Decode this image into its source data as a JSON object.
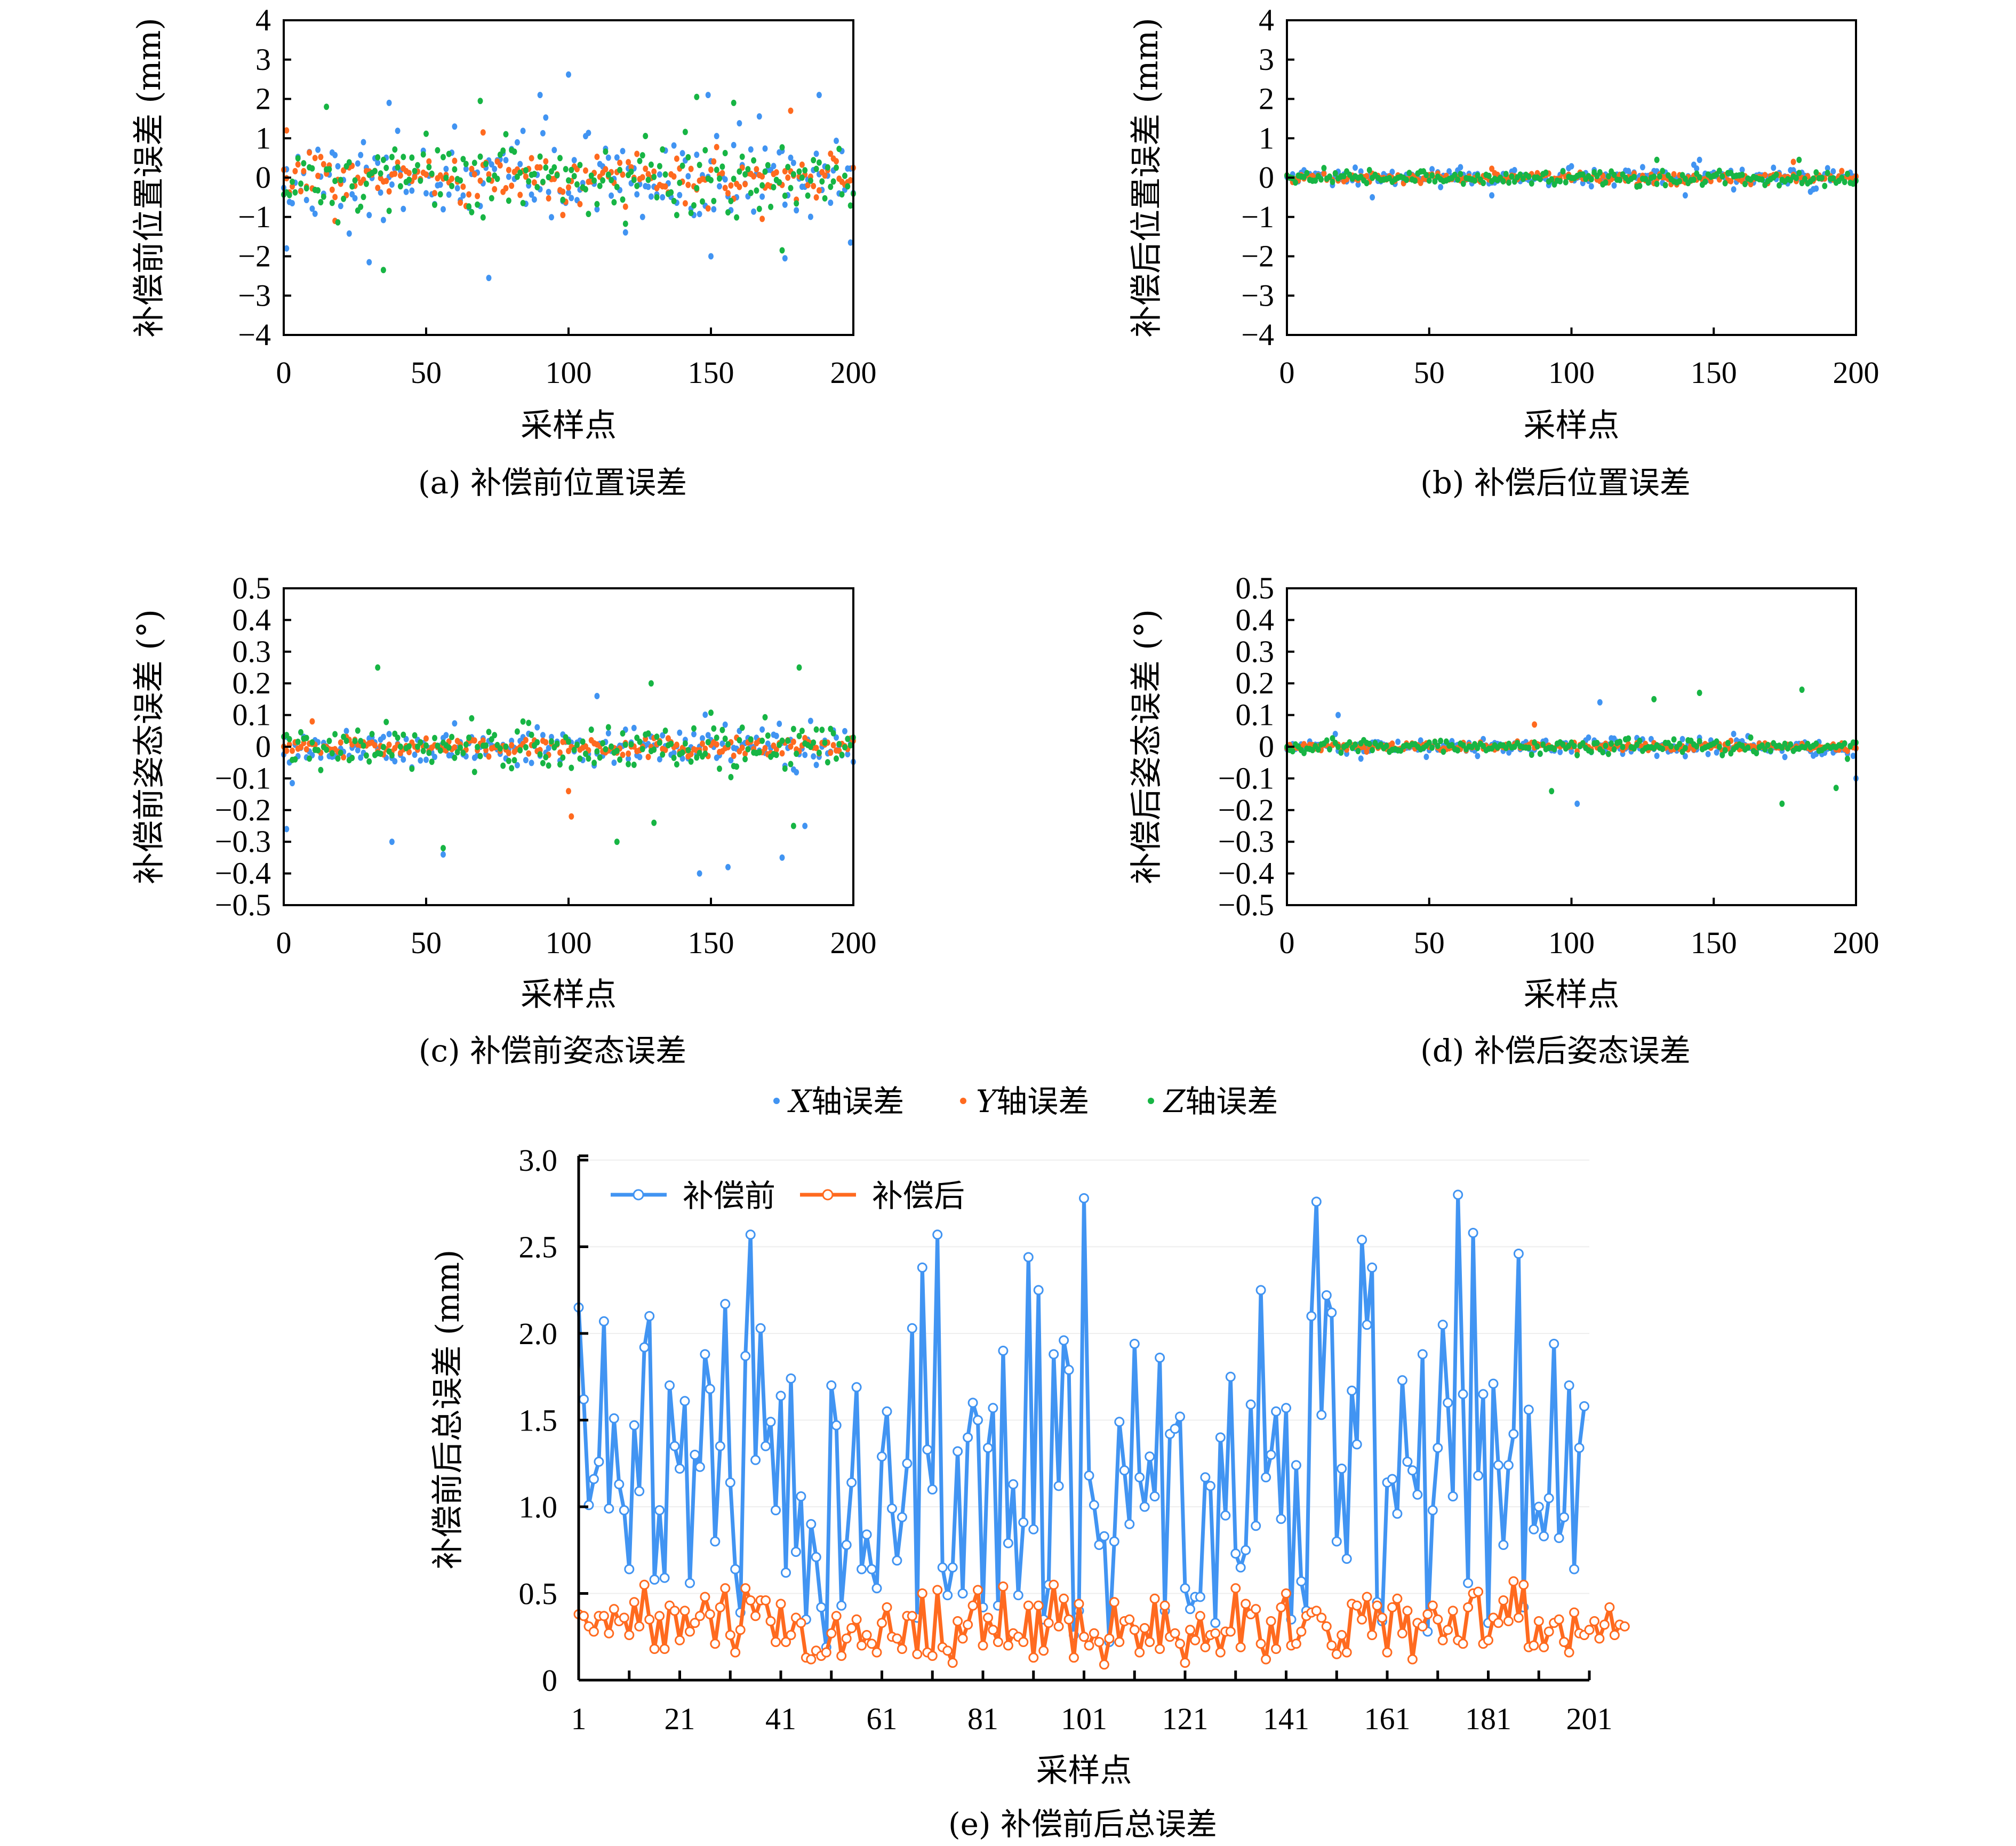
{
  "colors": {
    "x": "#4194f2",
    "y": "#ff6a1f",
    "z": "#17b544",
    "before": "#4194f2",
    "after": "#ff6a1f"
  },
  "shared_legend": [
    {
      "label": "X轴误差",
      "axis": "X",
      "suffix": "轴误差",
      "color": "#4194f2"
    },
    {
      "label": "Y轴误差",
      "axis": "Y",
      "suffix": "轴误差",
      "color": "#ff6a1f"
    },
    {
      "label": "Z轴误差",
      "axis": "Z",
      "suffix": "轴误差",
      "color": "#17b544"
    }
  ],
  "chart_data": [
    {
      "id": "a",
      "type": "scatter",
      "caption": "(a) 补偿前位置误差",
      "xlabel": "采样点",
      "ylabel": "补偿前位置误差 (mm)",
      "xlim": [
        0,
        200
      ],
      "ylim": [
        -4,
        4
      ],
      "xticks": [
        "0",
        "50",
        "100",
        "150",
        "200"
      ],
      "yticks": [
        "−4",
        "−3",
        "−2",
        "−1",
        "0",
        "1",
        "2",
        "3",
        "4"
      ],
      "series": [
        {
          "name": "X轴误差",
          "spread": 0.95,
          "outliers": [
            [
              1,
              -1.8
            ],
            [
              30,
              -2.15
            ],
            [
              37,
              1.9
            ],
            [
              72,
              -2.55
            ],
            [
              90,
              2.1
            ],
            [
              100,
              2.62
            ],
            [
              150,
              -2.0
            ],
            [
              149,
              2.1
            ],
            [
              176,
              -2.05
            ],
            [
              188,
              2.1
            ],
            [
              199,
              -1.65
            ]
          ]
        },
        {
          "name": "Y轴误差",
          "spread": 0.5,
          "outliers": [
            [
              1,
              1.2
            ],
            [
              18,
              -1.1
            ],
            [
              70,
              1.15
            ],
            [
              98,
              -0.95
            ],
            [
              178,
              1.7
            ],
            [
              168,
              -1.05
            ]
          ]
        },
        {
          "name": "Z轴误差",
          "spread": 0.8,
          "outliers": [
            [
              15,
              1.8
            ],
            [
              35,
              -2.35
            ],
            [
              69,
              1.95
            ],
            [
              145,
              2.05
            ],
            [
              158,
              1.9
            ],
            [
              175,
              -1.85
            ]
          ]
        }
      ]
    },
    {
      "id": "b",
      "type": "scatter",
      "caption": "(b) 补偿后位置误差",
      "xlabel": "采样点",
      "ylabel": "补偿后位置误差 (mm)",
      "xlim": [
        0,
        200
      ],
      "ylim": [
        -4,
        4
      ],
      "xticks": [
        "0",
        "50",
        "100",
        "150",
        "200"
      ],
      "yticks": [
        "−4",
        "−3",
        "−2",
        "−1",
        "0",
        "1",
        "2",
        "3",
        "4"
      ],
      "series": [
        {
          "name": "X轴误差",
          "spread": 0.2,
          "outliers": [
            [
              30,
              -0.5
            ],
            [
              72,
              -0.45
            ],
            [
              140,
              -0.45
            ],
            [
              145,
              0.45
            ]
          ]
        },
        {
          "name": "Y轴误差",
          "spread": 0.12,
          "outliers": [
            [
              178,
              0.4
            ]
          ]
        },
        {
          "name": "Z轴误差",
          "spread": 0.17,
          "outliers": [
            [
              130,
              0.45
            ],
            [
              180,
              0.45
            ]
          ]
        }
      ]
    },
    {
      "id": "c",
      "type": "scatter",
      "caption": "(c) 补偿前姿态误差",
      "xlabel": "采样点",
      "ylabel": "补偿前姿态误差 (°)",
      "xlim": [
        0,
        200
      ],
      "ylim": [
        -0.5,
        0.5
      ],
      "xticks": [
        "0",
        "50",
        "100",
        "150",
        "200"
      ],
      "yticks": [
        "−0.5",
        "−0.4",
        "−0.3",
        "−0.2",
        "−0.1",
        "0",
        "0.1",
        "0.2",
        "0.3",
        "0.4",
        "0.5"
      ],
      "series": [
        {
          "name": "X轴误差",
          "spread": 0.06,
          "outliers": [
            [
              1,
              -0.26
            ],
            [
              38,
              -0.3
            ],
            [
              56,
              -0.34
            ],
            [
              110,
              0.16
            ],
            [
              146,
              -0.4
            ],
            [
              156,
              -0.38
            ],
            [
              175,
              -0.35
            ],
            [
              183,
              -0.25
            ]
          ]
        },
        {
          "name": "Y轴误差",
          "spread": 0.025,
          "outliers": [
            [
              100,
              -0.14
            ],
            [
              101,
              -0.22
            ],
            [
              10,
              0.08
            ]
          ]
        },
        {
          "name": "Z轴误差",
          "spread": 0.075,
          "outliers": [
            [
              33,
              0.25
            ],
            [
              56,
              -0.32
            ],
            [
              117,
              -0.3
            ],
            [
              129,
              0.2
            ],
            [
              130,
              -0.24
            ],
            [
              181,
              0.25
            ],
            [
              179,
              -0.25
            ]
          ]
        }
      ]
    },
    {
      "id": "d",
      "type": "scatter",
      "caption": "(d) 补偿后姿态误差",
      "xlabel": "采样点",
      "ylabel": "补偿后姿态误差 (°)",
      "xlim": [
        0,
        200
      ],
      "ylim": [
        -0.5,
        0.5
      ],
      "xticks": [
        "0",
        "50",
        "100",
        "150",
        "200"
      ],
      "yticks": [
        "−0.5",
        "−0.4",
        "−0.3",
        "−0.2",
        "−0.1",
        "0",
        "0.1",
        "0.2",
        "0.3",
        "0.4",
        "0.5"
      ],
      "series": [
        {
          "name": "X轴误差",
          "spread": 0.025,
          "outliers": [
            [
              18,
              0.1
            ],
            [
              102,
              -0.18
            ],
            [
              110,
              0.14
            ],
            [
              200,
              -0.1
            ]
          ]
        },
        {
          "name": "Y轴误差",
          "spread": 0.012,
          "outliers": [
            [
              87,
              0.07
            ]
          ]
        },
        {
          "name": "Z轴误差",
          "spread": 0.02,
          "outliers": [
            [
              93,
              -0.14
            ],
            [
              129,
              0.15
            ],
            [
              145,
              0.17
            ],
            [
              181,
              0.18
            ],
            [
              174,
              -0.18
            ],
            [
              193,
              -0.13
            ]
          ]
        }
      ]
    },
    {
      "id": "e",
      "type": "line",
      "caption": "(e) 补偿前后总误差",
      "xlabel": "采样点",
      "ylabel": "补偿前后总误差 (mm)",
      "xlim": [
        1,
        201
      ],
      "ylim": [
        0,
        3.0
      ],
      "xticks": [
        "1",
        "21",
        "41",
        "61",
        "81",
        "101",
        "121",
        "141",
        "161",
        "181",
        "201"
      ],
      "yticks": [
        "0",
        "0.5",
        "1.0",
        "1.5",
        "2.0",
        "2.5",
        "3.0"
      ],
      "legend": [
        "补偿前",
        "补偿后"
      ],
      "series": [
        {
          "name": "补偿前",
          "values": [
            2.15,
            1.62,
            1.01,
            1.16,
            1.26,
            2.07,
            0.99,
            1.51,
            1.13,
            0.98,
            0.64,
            1.47,
            1.09,
            1.92,
            2.1,
            0.58,
            0.98,
            0.59,
            1.7,
            1.35,
            1.22,
            1.61,
            0.56,
            1.3,
            1.23,
            1.88,
            1.68,
            0.8,
            1.35,
            2.17,
            1.14,
            0.64,
            0.39,
            1.87,
            2.57,
            1.27,
            2.03,
            1.35,
            1.49,
            0.98,
            1.64,
            0.62,
            1.74,
            0.74,
            1.06,
            0.35,
            0.9,
            0.71,
            0.42,
            0.19,
            1.7,
            1.47,
            0.43,
            0.78,
            1.14,
            1.69,
            0.64,
            0.84,
            0.64,
            0.53,
            1.29,
            1.55,
            0.99,
            0.69,
            0.94,
            1.25,
            2.03,
            0.36,
            2.38,
            1.33,
            1.1,
            2.57,
            0.65,
            0.49,
            0.65,
            1.32,
            0.5,
            1.4,
            1.6,
            1.5,
            0.42,
            1.34,
            1.57,
            0.43,
            1.9,
            0.79,
            1.13,
            0.49,
            0.91,
            2.44,
            0.87,
            2.25,
            0.35,
            0.55,
            1.88,
            1.12,
            1.96,
            1.79,
            0.26,
            0.4,
            2.78,
            1.18,
            1.01,
            0.78,
            0.83,
            0.22,
            0.8,
            1.49,
            1.21,
            0.9,
            1.94,
            1.17,
            1.0,
            1.29,
            1.06,
            1.86,
            0.4,
            1.42,
            1.45,
            1.52,
            0.53,
            0.41,
            0.48,
            0.48,
            1.17,
            1.12,
            0.33,
            1.4,
            0.95,
            1.75,
            0.73,
            0.65,
            0.75,
            1.59,
            0.89,
            2.25,
            1.17,
            1.3,
            1.55,
            0.93,
            1.57,
            0.35,
            1.24,
            0.57,
            0.4,
            2.1,
            2.76,
            1.53,
            2.22,
            2.12,
            0.8,
            1.22,
            0.7,
            1.67,
            1.36,
            2.54,
            2.05,
            2.38,
            0.45,
            0.34,
            1.14,
            1.16,
            0.96,
            1.73,
            1.26,
            1.21,
            1.07,
            1.88,
            0.28,
            0.98,
            1.34,
            2.05,
            1.6,
            1.06,
            2.8,
            1.65,
            0.56,
            2.58,
            1.18,
            1.65,
            0.33,
            1.71,
            1.24,
            0.78,
            1.24,
            1.42,
            2.46,
            0.42,
            1.56,
            0.87,
            1.0,
            0.83,
            1.05,
            1.94,
            0.82,
            0.94,
            1.7,
            0.64,
            1.34,
            1.58
          ]
        },
        {
          "name": "补偿后",
          "values": [
            0.38,
            0.37,
            0.31,
            0.28,
            0.37,
            0.37,
            0.27,
            0.41,
            0.34,
            0.36,
            0.26,
            0.45,
            0.31,
            0.55,
            0.35,
            0.18,
            0.37,
            0.18,
            0.43,
            0.4,
            0.23,
            0.4,
            0.28,
            0.33,
            0.37,
            0.48,
            0.38,
            0.21,
            0.42,
            0.53,
            0.26,
            0.16,
            0.29,
            0.53,
            0.46,
            0.37,
            0.46,
            0.46,
            0.34,
            0.22,
            0.44,
            0.22,
            0.26,
            0.36,
            0.33,
            0.13,
            0.12,
            0.17,
            0.14,
            0.16,
            0.27,
            0.37,
            0.14,
            0.24,
            0.3,
            0.35,
            0.2,
            0.26,
            0.21,
            0.16,
            0.33,
            0.42,
            0.25,
            0.24,
            0.18,
            0.37,
            0.37,
            0.15,
            0.5,
            0.16,
            0.14,
            0.52,
            0.19,
            0.17,
            0.1,
            0.34,
            0.24,
            0.32,
            0.43,
            0.52,
            0.2,
            0.36,
            0.29,
            0.22,
            0.54,
            0.2,
            0.27,
            0.25,
            0.22,
            0.43,
            0.13,
            0.43,
            0.17,
            0.33,
            0.55,
            0.31,
            0.47,
            0.35,
            0.13,
            0.44,
            0.25,
            0.2,
            0.27,
            0.22,
            0.09,
            0.24,
            0.45,
            0.22,
            0.34,
            0.35,
            0.29,
            0.16,
            0.3,
            0.22,
            0.47,
            0.18,
            0.43,
            0.25,
            0.27,
            0.21,
            0.1,
            0.29,
            0.23,
            0.37,
            0.19,
            0.26,
            0.27,
            0.16,
            0.28,
            0.28,
            0.53,
            0.19,
            0.44,
            0.38,
            0.41,
            0.21,
            0.12,
            0.34,
            0.18,
            0.42,
            0.5,
            0.2,
            0.21,
            0.28,
            0.37,
            0.39,
            0.4,
            0.36,
            0.31,
            0.2,
            0.15,
            0.26,
            0.16,
            0.44,
            0.43,
            0.35,
            0.48,
            0.26,
            0.43,
            0.36,
            0.16,
            0.42,
            0.47,
            0.27,
            0.4,
            0.12,
            0.33,
            0.31,
            0.38,
            0.43,
            0.35,
            0.23,
            0.29,
            0.4,
            0.23,
            0.21,
            0.42,
            0.5,
            0.51,
            0.21,
            0.23,
            0.36,
            0.33,
            0.46,
            0.34,
            0.57,
            0.36,
            0.55,
            0.19,
            0.2,
            0.34,
            0.19,
            0.28,
            0.33,
            0.35,
            0.22,
            0.16,
            0.39,
            0.27,
            0.26,
            0.29,
            0.34,
            0.24,
            0.32,
            0.42,
            0.26,
            0.32,
            0.31
          ]
        }
      ]
    }
  ]
}
